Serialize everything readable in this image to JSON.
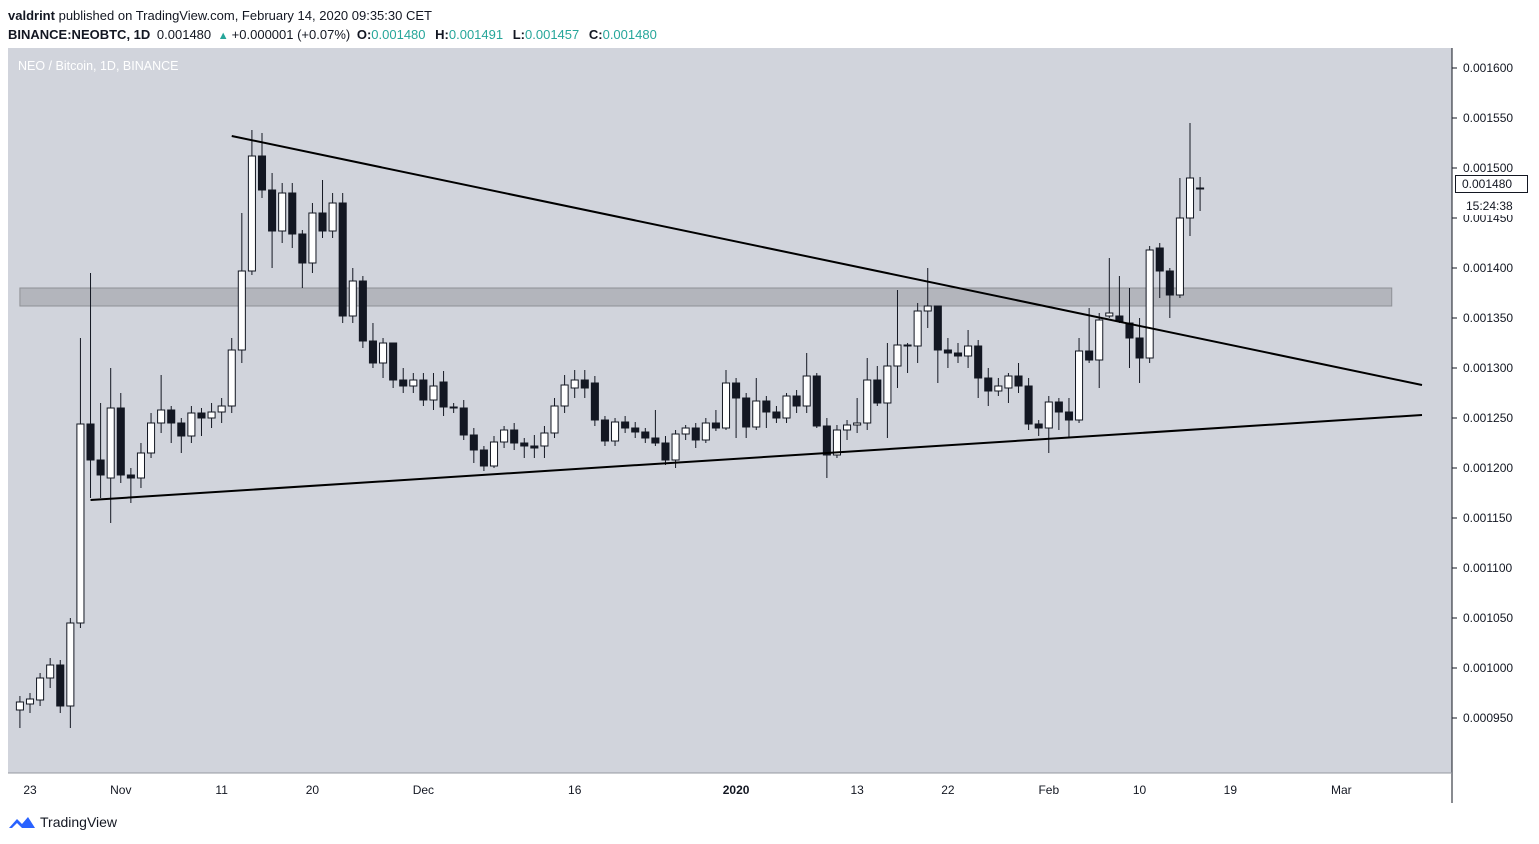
{
  "header": {
    "publisher": "valdrint",
    "published_text": "published on TradingView.com, February 14, 2020 09:35:30 CET",
    "symbol": "BINANCE:NEOBTC, 1D",
    "last": "0.001480",
    "change": "+0.000001 (+0.07%)",
    "o_label": "O:",
    "o_value": "0.001480",
    "h_label": "H:",
    "h_value": "0.001491",
    "l_label": "L:",
    "l_value": "0.001457",
    "c_label": "C:",
    "c_value": "0.001480"
  },
  "footer": {
    "brand": "TradingView"
  },
  "colors": {
    "pane_bg": "#d1d4dc",
    "band": "#a8abb1",
    "line": "#000000",
    "up": "#ffffff",
    "down": "#131722"
  },
  "chart_data": {
    "type": "candlestick",
    "title": "NEO / Bitcoin, 1D, BINANCE",
    "last_price_label": "0.001480",
    "countdown_label": "15:24:38",
    "y_range": [
      0.00091,
      0.001615
    ],
    "y_ticks": [
      "0.000950",
      "0.001000",
      "0.001050",
      "0.001100",
      "0.001150",
      "0.001200",
      "0.001250",
      "0.001300",
      "0.001350",
      "0.001400",
      "0.001450",
      "0.001500",
      "0.001550",
      "0.001600"
    ],
    "x_range": [
      "2019-10-23",
      "2020-03-09"
    ],
    "x_ticks": [
      {
        "date": "2019-10-23",
        "label": "23"
      },
      {
        "date": "2019-11-01",
        "label": "Nov"
      },
      {
        "date": "2019-11-11",
        "label": "11"
      },
      {
        "date": "2019-11-20",
        "label": "20"
      },
      {
        "date": "2019-12-01",
        "label": "Dec"
      },
      {
        "date": "2019-12-16",
        "label": "16"
      },
      {
        "date": "2020-01-01",
        "label": "2020"
      },
      {
        "date": "2020-01-13",
        "label": "13"
      },
      {
        "date": "2020-01-22",
        "label": "22"
      },
      {
        "date": "2020-02-01",
        "label": "Feb"
      },
      {
        "date": "2020-02-10",
        "label": "10"
      },
      {
        "date": "2020-02-19",
        "label": "19"
      },
      {
        "date": "2020-03-01",
        "label": "Mar"
      }
    ],
    "candles": [
      {
        "d": "2019-10-22",
        "o": 0.000958,
        "h": 0.000972,
        "l": 0.00094,
        "c": 0.000966
      },
      {
        "d": "2019-10-23",
        "o": 0.000964,
        "h": 0.000975,
        "l": 0.000955,
        "c": 0.000969
      },
      {
        "d": "2019-10-24",
        "o": 0.000968,
        "h": 0.000995,
        "l": 0.000962,
        "c": 0.00099
      },
      {
        "d": "2019-10-25",
        "o": 0.00099,
        "h": 0.00101,
        "l": 0.00098,
        "c": 0.001003
      },
      {
        "d": "2019-10-26",
        "o": 0.001003,
        "h": 0.001008,
        "l": 0.000955,
        "c": 0.000962
      },
      {
        "d": "2019-10-27",
        "o": 0.000962,
        "h": 0.00105,
        "l": 0.00094,
        "c": 0.001045
      },
      {
        "d": "2019-10-28",
        "o": 0.001045,
        "h": 0.00133,
        "l": 0.00104,
        "c": 0.001244
      },
      {
        "d": "2019-10-29",
        "o": 0.001244,
        "h": 0.001395,
        "l": 0.00117,
        "c": 0.001208
      },
      {
        "d": "2019-10-30",
        "o": 0.001208,
        "h": 0.001265,
        "l": 0.00117,
        "c": 0.001193
      },
      {
        "d": "2019-10-31",
        "o": 0.00119,
        "h": 0.0013,
        "l": 0.001145,
        "c": 0.00126
      },
      {
        "d": "2019-11-01",
        "o": 0.00126,
        "h": 0.001275,
        "l": 0.001185,
        "c": 0.001193
      },
      {
        "d": "2019-11-02",
        "o": 0.001193,
        "h": 0.0012,
        "l": 0.001165,
        "c": 0.00119
      },
      {
        "d": "2019-11-03",
        "o": 0.00119,
        "h": 0.001225,
        "l": 0.00118,
        "c": 0.001215
      },
      {
        "d": "2019-11-04",
        "o": 0.001215,
        "h": 0.001255,
        "l": 0.00121,
        "c": 0.001245
      },
      {
        "d": "2019-11-05",
        "o": 0.001245,
        "h": 0.001293,
        "l": 0.001235,
        "c": 0.001258
      },
      {
        "d": "2019-11-06",
        "o": 0.001258,
        "h": 0.001262,
        "l": 0.001225,
        "c": 0.001245
      },
      {
        "d": "2019-11-07",
        "o": 0.001245,
        "h": 0.00125,
        "l": 0.001215,
        "c": 0.001232
      },
      {
        "d": "2019-11-08",
        "o": 0.001232,
        "h": 0.001262,
        "l": 0.001225,
        "c": 0.001255
      },
      {
        "d": "2019-11-09",
        "o": 0.001255,
        "h": 0.00126,
        "l": 0.001232,
        "c": 0.00125
      },
      {
        "d": "2019-11-10",
        "o": 0.00125,
        "h": 0.001265,
        "l": 0.00124,
        "c": 0.001256
      },
      {
        "d": "2019-11-11",
        "o": 0.001256,
        "h": 0.00127,
        "l": 0.001245,
        "c": 0.001262
      },
      {
        "d": "2019-11-12",
        "o": 0.001262,
        "h": 0.00133,
        "l": 0.001255,
        "c": 0.001318
      },
      {
        "d": "2019-11-13",
        "o": 0.001318,
        "h": 0.001455,
        "l": 0.001305,
        "c": 0.001397
      },
      {
        "d": "2019-11-14",
        "o": 0.001397,
        "h": 0.001538,
        "l": 0.001393,
        "c": 0.001512
      },
      {
        "d": "2019-11-15",
        "o": 0.001512,
        "h": 0.001535,
        "l": 0.00147,
        "c": 0.001478
      },
      {
        "d": "2019-11-16",
        "o": 0.001478,
        "h": 0.001495,
        "l": 0.0014,
        "c": 0.001437
      },
      {
        "d": "2019-11-17",
        "o": 0.001437,
        "h": 0.001485,
        "l": 0.001425,
        "c": 0.001475
      },
      {
        "d": "2019-11-18",
        "o": 0.001475,
        "h": 0.001485,
        "l": 0.00142,
        "c": 0.001434
      },
      {
        "d": "2019-11-19",
        "o": 0.001434,
        "h": 0.001438,
        "l": 0.00138,
        "c": 0.001405
      },
      {
        "d": "2019-11-20",
        "o": 0.001405,
        "h": 0.001465,
        "l": 0.001395,
        "c": 0.001455
      },
      {
        "d": "2019-11-21",
        "o": 0.001455,
        "h": 0.001488,
        "l": 0.00143,
        "c": 0.001437
      },
      {
        "d": "2019-11-22",
        "o": 0.001437,
        "h": 0.001475,
        "l": 0.00143,
        "c": 0.001465
      },
      {
        "d": "2019-11-23",
        "o": 0.001465,
        "h": 0.001475,
        "l": 0.001345,
        "c": 0.001352
      },
      {
        "d": "2019-11-24",
        "o": 0.001352,
        "h": 0.0014,
        "l": 0.001345,
        "c": 0.001387
      },
      {
        "d": "2019-11-25",
        "o": 0.001387,
        "h": 0.001392,
        "l": 0.00132,
        "c": 0.001327
      },
      {
        "d": "2019-11-26",
        "o": 0.001327,
        "h": 0.001345,
        "l": 0.0013,
        "c": 0.001305
      },
      {
        "d": "2019-11-27",
        "o": 0.001305,
        "h": 0.00133,
        "l": 0.00129,
        "c": 0.001325
      },
      {
        "d": "2019-11-28",
        "o": 0.001325,
        "h": 0.001325,
        "l": 0.00128,
        "c": 0.001288
      },
      {
        "d": "2019-11-29",
        "o": 0.001288,
        "h": 0.0013,
        "l": 0.001275,
        "c": 0.001282
      },
      {
        "d": "2019-11-30",
        "o": 0.001282,
        "h": 0.001295,
        "l": 0.001275,
        "c": 0.001288
      },
      {
        "d": "2019-12-01",
        "o": 0.001288,
        "h": 0.001295,
        "l": 0.001262,
        "c": 0.001268
      },
      {
        "d": "2019-12-02",
        "o": 0.001268,
        "h": 0.001295,
        "l": 0.001258,
        "c": 0.001282
      },
      {
        "d": "2019-12-03",
        "o": 0.001286,
        "h": 0.001297,
        "l": 0.001252,
        "c": 0.001261
      },
      {
        "d": "2019-12-04",
        "o": 0.001261,
        "h": 0.001265,
        "l": 0.001255,
        "c": 0.00126
      },
      {
        "d": "2019-12-05",
        "o": 0.00126,
        "h": 0.001268,
        "l": 0.001228,
        "c": 0.001233
      },
      {
        "d": "2019-12-06",
        "o": 0.001233,
        "h": 0.00124,
        "l": 0.001205,
        "c": 0.001218
      },
      {
        "d": "2019-12-07",
        "o": 0.001218,
        "h": 0.001222,
        "l": 0.001197,
        "c": 0.001202
      },
      {
        "d": "2019-12-08",
        "o": 0.001202,
        "h": 0.001232,
        "l": 0.0012,
        "c": 0.001226
      },
      {
        "d": "2019-12-09",
        "o": 0.001226,
        "h": 0.001242,
        "l": 0.00122,
        "c": 0.001238
      },
      {
        "d": "2019-12-10",
        "o": 0.001238,
        "h": 0.001245,
        "l": 0.001218,
        "c": 0.001225
      },
      {
        "d": "2019-12-11",
        "o": 0.001225,
        "h": 0.00123,
        "l": 0.00121,
        "c": 0.001222
      },
      {
        "d": "2019-12-12",
        "o": 0.001222,
        "h": 0.001233,
        "l": 0.00121,
        "c": 0.00122
      },
      {
        "d": "2019-12-13",
        "o": 0.001222,
        "h": 0.001242,
        "l": 0.00121,
        "c": 0.001235
      },
      {
        "d": "2019-12-14",
        "o": 0.001235,
        "h": 0.00127,
        "l": 0.00123,
        "c": 0.001262
      },
      {
        "d": "2019-12-15",
        "o": 0.001262,
        "h": 0.001293,
        "l": 0.001255,
        "c": 0.001283
      },
      {
        "d": "2019-12-16",
        "o": 0.00128,
        "h": 0.001298,
        "l": 0.00127,
        "c": 0.001288
      },
      {
        "d": "2019-12-17",
        "o": 0.001288,
        "h": 0.001298,
        "l": 0.00127,
        "c": 0.00128
      },
      {
        "d": "2019-12-18",
        "o": 0.001285,
        "h": 0.001292,
        "l": 0.001242,
        "c": 0.001248
      },
      {
        "d": "2019-12-19",
        "o": 0.001248,
        "h": 0.001252,
        "l": 0.001222,
        "c": 0.001227
      },
      {
        "d": "2019-12-20",
        "o": 0.001227,
        "h": 0.00125,
        "l": 0.001222,
        "c": 0.001246
      },
      {
        "d": "2019-12-21",
        "o": 0.001246,
        "h": 0.001252,
        "l": 0.001235,
        "c": 0.00124
      },
      {
        "d": "2019-12-22",
        "o": 0.00124,
        "h": 0.001246,
        "l": 0.00123,
        "c": 0.001236
      },
      {
        "d": "2019-12-23",
        "o": 0.001236,
        "h": 0.00124,
        "l": 0.001225,
        "c": 0.00123
      },
      {
        "d": "2019-12-24",
        "o": 0.00123,
        "h": 0.001258,
        "l": 0.001222,
        "c": 0.001225
      },
      {
        "d": "2019-12-25",
        "o": 0.001225,
        "h": 0.001232,
        "l": 0.001203,
        "c": 0.001208
      },
      {
        "d": "2019-12-26",
        "o": 0.001208,
        "h": 0.001238,
        "l": 0.0012,
        "c": 0.001234
      },
      {
        "d": "2019-12-27",
        "o": 0.001234,
        "h": 0.001243,
        "l": 0.001228,
        "c": 0.00124
      },
      {
        "d": "2019-12-28",
        "o": 0.00124,
        "h": 0.001245,
        "l": 0.00122,
        "c": 0.001228
      },
      {
        "d": "2019-12-29",
        "o": 0.001228,
        "h": 0.00125,
        "l": 0.001225,
        "c": 0.001245
      },
      {
        "d": "2019-12-30",
        "o": 0.001245,
        "h": 0.001258,
        "l": 0.001237,
        "c": 0.00124
      },
      {
        "d": "2019-12-31",
        "o": 0.00124,
        "h": 0.001298,
        "l": 0.001238,
        "c": 0.001285
      },
      {
        "d": "2020-01-01",
        "o": 0.001285,
        "h": 0.00129,
        "l": 0.00123,
        "c": 0.00127
      },
      {
        "d": "2020-01-02",
        "o": 0.00127,
        "h": 0.001275,
        "l": 0.00123,
        "c": 0.001241
      },
      {
        "d": "2020-01-03",
        "o": 0.001241,
        "h": 0.00129,
        "l": 0.001238,
        "c": 0.001267
      },
      {
        "d": "2020-01-04",
        "o": 0.001267,
        "h": 0.001272,
        "l": 0.00124,
        "c": 0.001256
      },
      {
        "d": "2020-01-05",
        "o": 0.001256,
        "h": 0.001262,
        "l": 0.001245,
        "c": 0.00125
      },
      {
        "d": "2020-01-06",
        "o": 0.00125,
        "h": 0.001275,
        "l": 0.001245,
        "c": 0.001272
      },
      {
        "d": "2020-01-07",
        "o": 0.001272,
        "h": 0.001278,
        "l": 0.001255,
        "c": 0.001262
      },
      {
        "d": "2020-01-08",
        "o": 0.001262,
        "h": 0.001315,
        "l": 0.001255,
        "c": 0.001292
      },
      {
        "d": "2020-01-09",
        "o": 0.001292,
        "h": 0.001295,
        "l": 0.00124,
        "c": 0.001242
      },
      {
        "d": "2020-01-10",
        "o": 0.001242,
        "h": 0.00125,
        "l": 0.00119,
        "c": 0.001213
      },
      {
        "d": "2020-01-11",
        "o": 0.001213,
        "h": 0.001243,
        "l": 0.00121,
        "c": 0.001238
      },
      {
        "d": "2020-01-12",
        "o": 0.001238,
        "h": 0.001248,
        "l": 0.001228,
        "c": 0.001243
      },
      {
        "d": "2020-01-13",
        "o": 0.001243,
        "h": 0.00127,
        "l": 0.001235,
        "c": 0.001245
      },
      {
        "d": "2020-01-14",
        "o": 0.001245,
        "h": 0.00131,
        "l": 0.001238,
        "c": 0.001288
      },
      {
        "d": "2020-01-15",
        "o": 0.001288,
        "h": 0.001302,
        "l": 0.001262,
        "c": 0.001265
      },
      {
        "d": "2020-01-16",
        "o": 0.001265,
        "h": 0.001325,
        "l": 0.00123,
        "c": 0.001302
      },
      {
        "d": "2020-01-17",
        "o": 0.001302,
        "h": 0.001378,
        "l": 0.00128,
        "c": 0.001323
      },
      {
        "d": "2020-01-18",
        "o": 0.001323,
        "h": 0.001325,
        "l": 0.001295,
        "c": 0.001322
      },
      {
        "d": "2020-01-19",
        "o": 0.001322,
        "h": 0.001365,
        "l": 0.001305,
        "c": 0.001357
      },
      {
        "d": "2020-01-20",
        "o": 0.001357,
        "h": 0.0014,
        "l": 0.00134,
        "c": 0.001362
      },
      {
        "d": "2020-01-21",
        "o": 0.001362,
        "h": 0.001362,
        "l": 0.001285,
        "c": 0.001318
      },
      {
        "d": "2020-01-22",
        "o": 0.001318,
        "h": 0.00133,
        "l": 0.0013,
        "c": 0.001315
      },
      {
        "d": "2020-01-23",
        "o": 0.001315,
        "h": 0.001325,
        "l": 0.001305,
        "c": 0.001312
      },
      {
        "d": "2020-01-24",
        "o": 0.001312,
        "h": 0.001338,
        "l": 0.0013,
        "c": 0.001322
      },
      {
        "d": "2020-01-25",
        "o": 0.001322,
        "h": 0.001328,
        "l": 0.00127,
        "c": 0.00129
      },
      {
        "d": "2020-01-26",
        "o": 0.00129,
        "h": 0.0013,
        "l": 0.001262,
        "c": 0.001277
      },
      {
        "d": "2020-01-27",
        "o": 0.001277,
        "h": 0.00129,
        "l": 0.001272,
        "c": 0.001282
      },
      {
        "d": "2020-01-28",
        "o": 0.00128,
        "h": 0.001295,
        "l": 0.001265,
        "c": 0.001292
      },
      {
        "d": "2020-01-29",
        "o": 0.001292,
        "h": 0.001305,
        "l": 0.001275,
        "c": 0.001282
      },
      {
        "d": "2020-01-30",
        "o": 0.001282,
        "h": 0.00129,
        "l": 0.001238,
        "c": 0.001244
      },
      {
        "d": "2020-01-31",
        "o": 0.001244,
        "h": 0.001248,
        "l": 0.001232,
        "c": 0.00124
      },
      {
        "d": "2020-02-01",
        "o": 0.00124,
        "h": 0.001272,
        "l": 0.001215,
        "c": 0.001266
      },
      {
        "d": "2020-02-02",
        "o": 0.001266,
        "h": 0.00127,
        "l": 0.001238,
        "c": 0.001256
      },
      {
        "d": "2020-02-03",
        "o": 0.001256,
        "h": 0.00127,
        "l": 0.00123,
        "c": 0.001248
      },
      {
        "d": "2020-02-04",
        "o": 0.001248,
        "h": 0.00133,
        "l": 0.001245,
        "c": 0.001317
      },
      {
        "d": "2020-02-05",
        "o": 0.001317,
        "h": 0.00136,
        "l": 0.001305,
        "c": 0.001308
      },
      {
        "d": "2020-02-06",
        "o": 0.001308,
        "h": 0.001355,
        "l": 0.00128,
        "c": 0.001348
      },
      {
        "d": "2020-02-07",
        "o": 0.001352,
        "h": 0.00141,
        "l": 0.00135,
        "c": 0.001355
      },
      {
        "d": "2020-02-08",
        "o": 0.001352,
        "h": 0.001392,
        "l": 0.001345,
        "c": 0.001347
      },
      {
        "d": "2020-02-09",
        "o": 0.001345,
        "h": 0.00138,
        "l": 0.0013,
        "c": 0.00133
      },
      {
        "d": "2020-02-10",
        "o": 0.00133,
        "h": 0.00135,
        "l": 0.001285,
        "c": 0.00131
      },
      {
        "d": "2020-02-11",
        "o": 0.00131,
        "h": 0.001422,
        "l": 0.001305,
        "c": 0.001418
      },
      {
        "d": "2020-02-12",
        "o": 0.00142,
        "h": 0.001425,
        "l": 0.00137,
        "c": 0.001397
      },
      {
        "d": "2020-02-13",
        "o": 0.001397,
        "h": 0.0014,
        "l": 0.00135,
        "c": 0.001373
      },
      {
        "d": "2020-02-14",
        "o": 0.001373,
        "h": 0.00149,
        "l": 0.00137,
        "c": 0.00145
      },
      {
        "d": "2020-02-15",
        "o": 0.00145,
        "h": 0.001545,
        "l": 0.001432,
        "c": 0.00149
      },
      {
        "d": "2020-02-16",
        "o": 0.00148,
        "h": 0.001491,
        "l": 0.001457,
        "c": 0.00148
      }
    ],
    "trendlines": [
      {
        "from": {
          "d": "2019-11-12",
          "p": 0.001532
        },
        "to": {
          "d": "2020-03-09",
          "p": 0.001283
        }
      },
      {
        "from": {
          "d": "2019-10-29",
          "p": 0.001168
        },
        "to": {
          "d": "2020-03-09",
          "p": 0.001253
        }
      }
    ],
    "zone": {
      "from_date": "2019-10-22",
      "to_date": "2020-03-06",
      "low": 0.001362,
      "high": 0.00138
    }
  }
}
